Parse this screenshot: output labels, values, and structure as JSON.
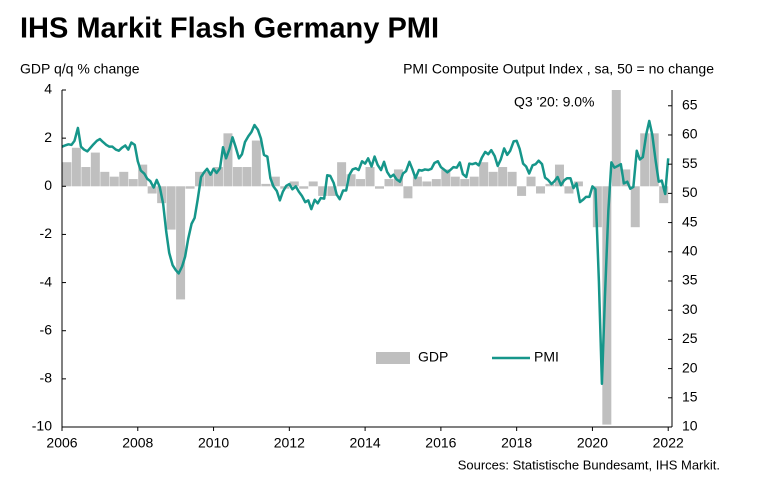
{
  "chart_data": {
    "type": "bar-line",
    "title": "IHS Markit Flash Germany PMI",
    "y_label": "GDP q/q % change",
    "y2_label": "PMI Composite  Output Index , sa, 50 = no change",
    "annotation": "Q3 '20: 9.0%",
    "source": "Sources: Statistische Bundesamt, IHS Markit.",
    "xlim": [
      2006,
      2022.1
    ],
    "xticks": [
      2006,
      2008,
      2010,
      2012,
      2014,
      2016,
      2018,
      2020,
      2022
    ],
    "ylim": [
      -10,
      4
    ],
    "yticks": [
      -10,
      -8,
      -6,
      -4,
      -2,
      0,
      2,
      4
    ],
    "y2lim": [
      10,
      67.7
    ],
    "y2ticks": [
      10,
      15,
      20,
      25,
      30,
      35,
      40,
      45,
      50,
      55,
      60,
      65
    ],
    "legend": "bottom-center",
    "series": [
      {
        "name": "GDP",
        "type": "bar",
        "color": "#bfbfbf",
        "x": [
          2006.13,
          2006.38,
          2006.63,
          2006.88,
          2007.13,
          2007.38,
          2007.63,
          2007.88,
          2008.13,
          2008.38,
          2008.63,
          2008.88,
          2009.13,
          2009.38,
          2009.63,
          2009.88,
          2010.13,
          2010.38,
          2010.63,
          2010.88,
          2011.13,
          2011.38,
          2011.63,
          2011.88,
          2012.13,
          2012.38,
          2012.63,
          2012.88,
          2013.13,
          2013.38,
          2013.63,
          2013.88,
          2014.13,
          2014.38,
          2014.63,
          2014.88,
          2015.13,
          2015.38,
          2015.63,
          2015.88,
          2016.13,
          2016.38,
          2016.63,
          2016.88,
          2017.13,
          2017.38,
          2017.63,
          2017.88,
          2018.13,
          2018.38,
          2018.63,
          2018.88,
          2019.13,
          2019.38,
          2019.63,
          2019.88,
          2020.13,
          2020.38,
          2020.63,
          2020.88,
          2021.13,
          2021.38,
          2021.63,
          2021.88
        ],
        "values": [
          1.0,
          1.6,
          0.8,
          1.4,
          0.6,
          0.4,
          0.6,
          0.3,
          0.9,
          -0.3,
          -0.7,
          -1.8,
          -4.7,
          -0.1,
          0.6,
          0.6,
          0.8,
          2.2,
          0.8,
          0.8,
          1.9,
          0.1,
          0.4,
          -0.1,
          0.2,
          -0.1,
          0.2,
          -0.4,
          -0.4,
          1.0,
          0.5,
          0.3,
          0.8,
          -0.1,
          0.3,
          0.7,
          -0.5,
          0.4,
          0.2,
          0.3,
          0.7,
          0.4,
          0.3,
          0.4,
          1.0,
          0.6,
          0.8,
          0.6,
          -0.4,
          0.4,
          -0.3,
          0.1,
          0.9,
          -0.3,
          0.2,
          0.0,
          -1.7,
          -9.9,
          9.0,
          0.7,
          -1.7,
          2.2,
          2.2,
          -0.7
        ]
      },
      {
        "name": "PMI",
        "type": "line",
        "axis": "y2",
        "color": "#16968a",
        "x": [
          2006,
          2006.08,
          2006.17,
          2006.25,
          2006.33,
          2006.42,
          2006.5,
          2006.58,
          2006.67,
          2006.75,
          2006.83,
          2006.92,
          2007,
          2007.08,
          2007.17,
          2007.25,
          2007.33,
          2007.42,
          2007.5,
          2007.58,
          2007.67,
          2007.75,
          2007.83,
          2007.92,
          2008,
          2008.08,
          2008.17,
          2008.25,
          2008.33,
          2008.42,
          2008.5,
          2008.58,
          2008.67,
          2008.75,
          2008.83,
          2008.92,
          2009,
          2009.08,
          2009.17,
          2009.25,
          2009.33,
          2009.42,
          2009.5,
          2009.58,
          2009.67,
          2009.75,
          2009.83,
          2009.92,
          2010,
          2010.08,
          2010.17,
          2010.25,
          2010.33,
          2010.42,
          2010.5,
          2010.58,
          2010.67,
          2010.75,
          2010.83,
          2010.92,
          2011,
          2011.08,
          2011.17,
          2011.25,
          2011.33,
          2011.42,
          2011.5,
          2011.58,
          2011.67,
          2011.75,
          2011.83,
          2011.92,
          2012,
          2012.08,
          2012.17,
          2012.25,
          2012.33,
          2012.42,
          2012.5,
          2012.58,
          2012.67,
          2012.75,
          2012.83,
          2012.92,
          2013,
          2013.08,
          2013.17,
          2013.25,
          2013.33,
          2013.42,
          2013.5,
          2013.58,
          2013.67,
          2013.75,
          2013.83,
          2013.92,
          2014,
          2014.08,
          2014.17,
          2014.25,
          2014.33,
          2014.42,
          2014.5,
          2014.58,
          2014.67,
          2014.75,
          2014.83,
          2014.92,
          2015,
          2015.08,
          2015.17,
          2015.25,
          2015.33,
          2015.42,
          2015.5,
          2015.58,
          2015.67,
          2015.75,
          2015.83,
          2015.92,
          2016,
          2016.08,
          2016.17,
          2016.25,
          2016.33,
          2016.42,
          2016.5,
          2016.58,
          2016.67,
          2016.75,
          2016.83,
          2016.92,
          2017,
          2017.08,
          2017.17,
          2017.25,
          2017.33,
          2017.42,
          2017.5,
          2017.58,
          2017.67,
          2017.75,
          2017.83,
          2017.92,
          2018,
          2018.08,
          2018.17,
          2018.25,
          2018.33,
          2018.42,
          2018.5,
          2018.58,
          2018.67,
          2018.75,
          2018.83,
          2018.92,
          2019,
          2019.08,
          2019.17,
          2019.25,
          2019.33,
          2019.42,
          2019.5,
          2019.58,
          2019.67,
          2019.75,
          2019.83,
          2019.92,
          2020,
          2020.08,
          2020.17,
          2020.25,
          2020.33,
          2020.42,
          2020.5,
          2020.58,
          2020.67,
          2020.75,
          2020.83,
          2020.92,
          2021,
          2021.08,
          2021.17,
          2021.25,
          2021.33,
          2021.42,
          2021.5,
          2021.58,
          2021.67,
          2021.75,
          2021.83,
          2021.92,
          2022
        ],
        "values": [
          58.0,
          58.2,
          58.4,
          58.3,
          59.0,
          61.2,
          58.0,
          57.5,
          57.2,
          57.8,
          58.4,
          59.0,
          59.3,
          58.8,
          58.3,
          58.0,
          58.0,
          57.5,
          57.3,
          57.8,
          58.2,
          57.5,
          58.7,
          58.3,
          55.5,
          53.9,
          53.4,
          52.5,
          52.1,
          51.0,
          52.3,
          51.1,
          48.2,
          43.5,
          39.8,
          37.7,
          36.9,
          36.3,
          37.5,
          39.2,
          42.2,
          44.8,
          45.8,
          48.9,
          52.8,
          53.6,
          54.2,
          53.2,
          54.2,
          53.5,
          54.3,
          57.9,
          56.0,
          57.6,
          59.6,
          58.0,
          56.0,
          56.7,
          58.8,
          59.8,
          60.5,
          61.7,
          60.9,
          59.4,
          56.6,
          56.3,
          52.6,
          51.2,
          50.4,
          48.8,
          50.3,
          51.3,
          51.6,
          50.7,
          51.2,
          50.3,
          49.6,
          48.5,
          48.8,
          47.3,
          48.9,
          48.3,
          49.2,
          49.1,
          53.1,
          53.0,
          51.8,
          49.8,
          49.0,
          50.5,
          50.5,
          53.1,
          54.1,
          54.3,
          54.0,
          55.5,
          55.1,
          56.0,
          54.6,
          56.3,
          54.9,
          54.0,
          55.4,
          53.7,
          52.8,
          53.2,
          52.4,
          52.0,
          53.4,
          53.8,
          55.4,
          54.1,
          52.6,
          54.0,
          53.9,
          54.1,
          54.0,
          54.2,
          55.2,
          55.5,
          54.5,
          54.1,
          53.6,
          54.0,
          54.5,
          54.4,
          55.3,
          53.3,
          52.8,
          55.1,
          55.0,
          55.2,
          54.8,
          56.1,
          57.1,
          56.7,
          57.4,
          56.4,
          54.7,
          55.8,
          57.7,
          56.6,
          57.3,
          58.9,
          59.0,
          57.6,
          55.1,
          54.6,
          53.4,
          54.8,
          55.0,
          55.6,
          55.0,
          52.7,
          52.3,
          51.6,
          52.1,
          52.8,
          51.4,
          52.2,
          52.6,
          52.6,
          50.9,
          51.7,
          48.5,
          48.9,
          49.4,
          49.4,
          51.2,
          50.7,
          35.0,
          17.4,
          32.3,
          47.0,
          55.3,
          54.4,
          54.7,
          55.0,
          51.7,
          52.0,
          50.8,
          51.1,
          57.3,
          55.8,
          56.2,
          60.1,
          62.4,
          60.0,
          55.5,
          52.0,
          52.2,
          49.9,
          56.0
        ]
      }
    ]
  }
}
